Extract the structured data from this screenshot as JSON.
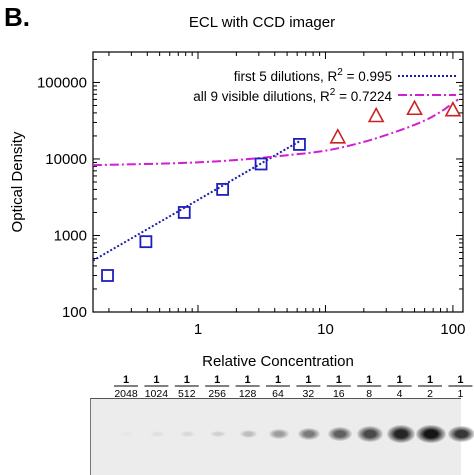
{
  "panel_label": "B.",
  "chart_data": {
    "type": "scatter",
    "title": "ECL with CCD imager",
    "xlabel": "Relative Concentration",
    "ylabel": "Optical Density",
    "xscale": "log",
    "yscale": "log",
    "xlim": [
      0.15,
      120
    ],
    "ylim": [
      100,
      250000
    ],
    "xticks": [
      "1",
      "10",
      "100"
    ],
    "yticks": [
      "100",
      "1000",
      "10000",
      "100000"
    ],
    "series": [
      {
        "marker": "square",
        "color": "#1f1fbf",
        "x": [
          0.195,
          0.39,
          0.78,
          1.56,
          3.125,
          6.25
        ],
        "y": [
          300,
          830,
          2000,
          4000,
          8600,
          15500
        ]
      },
      {
        "marker": "triangle",
        "color": "#cc2222",
        "x": [
          12.5,
          25,
          50,
          100
        ],
        "y": [
          19500,
          37000,
          46000,
          44000
        ]
      }
    ],
    "fits": [
      {
        "name": "first 5 dilutions, R",
        "r2_value": " = 0.995",
        "style": "dotted",
        "color": "#1a1aa8",
        "x": [
          0.15,
          6.25
        ],
        "y": [
          470,
          17000
        ]
      },
      {
        "name": "all 9 visible dilutions, R",
        "r2_value": " = 0.7224",
        "style": "dash-dot",
        "color": "#d21ed2",
        "x": [
          0.15,
          1,
          3,
          5,
          10,
          20,
          40,
          70,
          110
        ],
        "y": [
          8300,
          8900,
          10200,
          11200,
          12600,
          16500,
          24000,
          35000,
          60000
        ]
      }
    ],
    "superscript": "2",
    "legend_position": "top-right"
  },
  "dilutions": [
    {
      "num": "1",
      "den": "2048"
    },
    {
      "num": "1",
      "den": "1024"
    },
    {
      "num": "1",
      "den": "512"
    },
    {
      "num": "1",
      "den": "256"
    },
    {
      "num": "1",
      "den": "128"
    },
    {
      "num": "1",
      "den": "64"
    },
    {
      "num": "1",
      "den": "32"
    },
    {
      "num": "1",
      "den": "16"
    },
    {
      "num": "1",
      "den": "8"
    },
    {
      "num": "1",
      "den": "4"
    },
    {
      "num": "1",
      "den": "2"
    },
    {
      "num": "1",
      "den": "1"
    }
  ],
  "band_intensities": [
    0.02,
    0.05,
    0.08,
    0.12,
    0.2,
    0.35,
    0.5,
    0.62,
    0.72,
    0.88,
    0.95,
    0.8
  ]
}
